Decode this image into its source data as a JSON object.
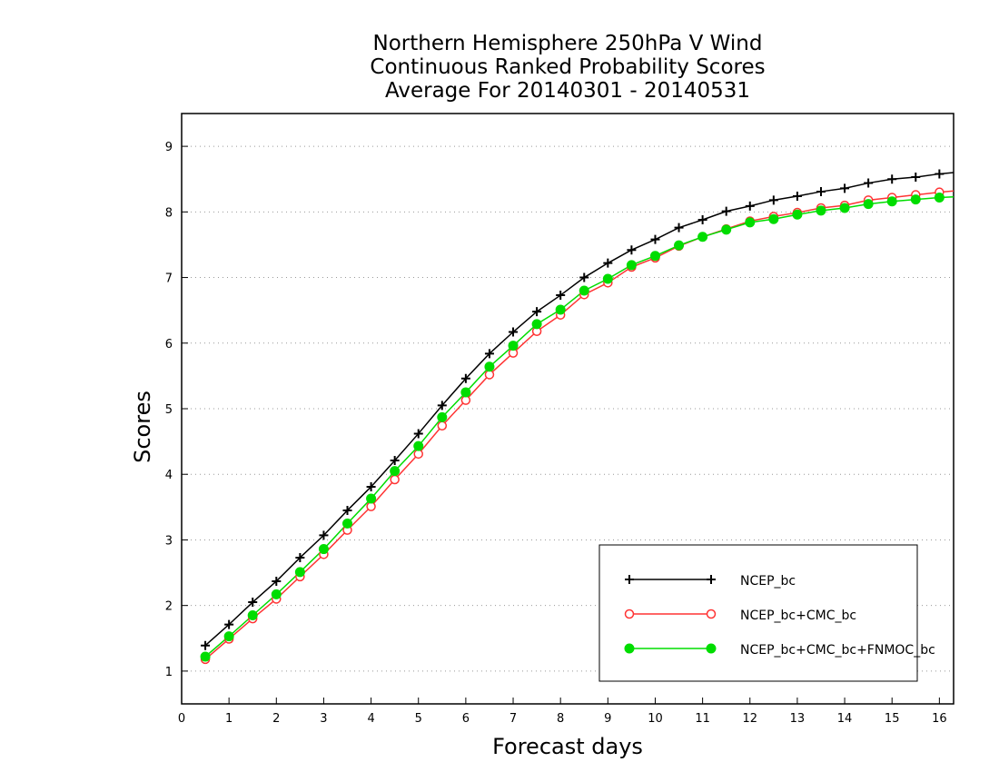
{
  "chart_data": {
    "type": "line",
    "title": [
      "Northern Hemisphere 250hPa V Wind",
      "Continuous Ranked Probability Scores",
      "Average For 20140301 - 20140531"
    ],
    "xlabel": "Forecast days",
    "ylabel": "Scores",
    "xlim": [
      0,
      16.3
    ],
    "ylim": [
      0.5,
      9.5
    ],
    "xticks": [
      "0",
      "1",
      "2",
      "3",
      "4",
      "5",
      "6",
      "7",
      "8",
      "9",
      "10",
      "11",
      "12",
      "13",
      "14",
      "15",
      "16"
    ],
    "yticks": [
      "1",
      "2",
      "3",
      "4",
      "5",
      "6",
      "7",
      "8",
      "9"
    ],
    "grid": "horizontal dotted",
    "legend_position": "bottom-right",
    "x": [
      0.5,
      1,
      1.5,
      2,
      2.5,
      3,
      3.5,
      4,
      4.5,
      5,
      5.5,
      6,
      6.5,
      7,
      7.5,
      8,
      8.5,
      9,
      9.5,
      10,
      10.5,
      11,
      11.5,
      12,
      12.5,
      13,
      13.5,
      14,
      14.5,
      15,
      15.5,
      16,
      16.3
    ],
    "series": [
      {
        "name": "NCEP_bc",
        "color": "#000000",
        "marker": "plus",
        "values": [
          1.39,
          1.71,
          2.05,
          2.37,
          2.73,
          3.07,
          3.45,
          3.81,
          4.21,
          4.62,
          5.05,
          5.46,
          5.84,
          6.17,
          6.48,
          6.73,
          7.0,
          7.22,
          7.42,
          7.58,
          7.76,
          7.88,
          8.01,
          8.09,
          8.18,
          8.24,
          8.31,
          8.36,
          8.44,
          8.5,
          8.53,
          8.58,
          8.6
        ]
      },
      {
        "name": "NCEP_bc+CMC_bc",
        "color": "#ff3333",
        "marker": "open-circle",
        "values": [
          1.18,
          1.49,
          1.8,
          2.1,
          2.44,
          2.78,
          3.15,
          3.51,
          3.92,
          4.31,
          4.74,
          5.13,
          5.52,
          5.85,
          6.18,
          6.43,
          6.74,
          6.92,
          7.16,
          7.3,
          7.48,
          7.62,
          7.74,
          7.86,
          7.93,
          7.99,
          8.06,
          8.1,
          8.18,
          8.22,
          8.26,
          8.3,
          8.32
        ]
      },
      {
        "name": "NCEP_bc+CMC_bc+FNMOC_bc",
        "color": "#00dd00",
        "marker": "filled-circle",
        "values": [
          1.22,
          1.53,
          1.85,
          2.17,
          2.51,
          2.86,
          3.25,
          3.63,
          4.05,
          4.43,
          4.87,
          5.25,
          5.64,
          5.96,
          6.29,
          6.51,
          6.8,
          6.98,
          7.19,
          7.33,
          7.49,
          7.62,
          7.73,
          7.84,
          7.89,
          7.96,
          8.02,
          8.06,
          8.12,
          8.16,
          8.19,
          8.22,
          8.23
        ]
      }
    ]
  }
}
